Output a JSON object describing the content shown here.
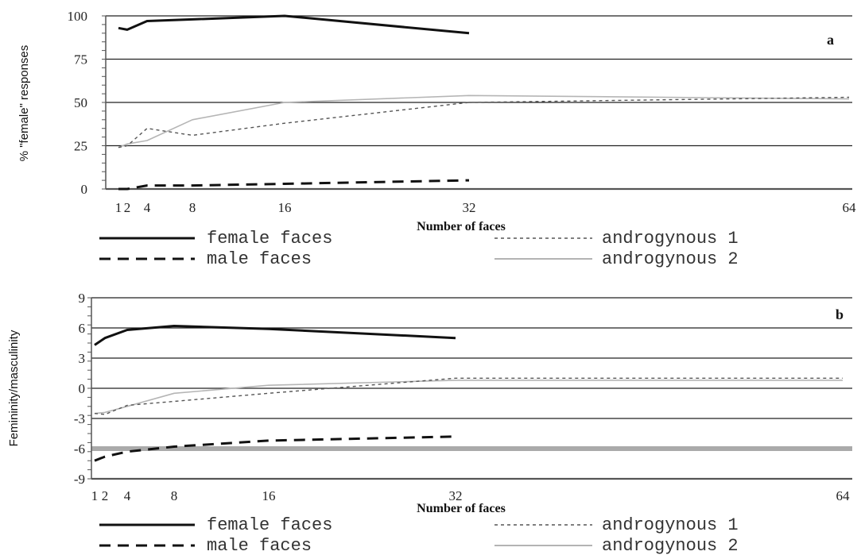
{
  "chart_data": [
    {
      "type": "line",
      "panel_label": "a",
      "xlabel": "Number of faces",
      "ylabel": "% \"female\" responses",
      "xlim": [
        1,
        64
      ],
      "ylim": [
        0,
        100
      ],
      "xticks": [
        1,
        2,
        4,
        8,
        16,
        32,
        64
      ],
      "xtick_labels": [
        "1",
        "2",
        "4",
        "8",
        "16",
        "32",
        "64"
      ],
      "yticks": [
        0,
        25,
        50,
        75,
        100
      ],
      "ytick_labels": [
        "0",
        "25",
        "50",
        "75",
        "100"
      ],
      "grid": "horizontal",
      "series": [
        {
          "name": "female faces",
          "style": "solid-bold",
          "x": [
            1,
            2,
            4,
            8,
            16,
            32
          ],
          "y": [
            93,
            92,
            97,
            98,
            100,
            90
          ]
        },
        {
          "name": "male faces",
          "style": "dashed-bold",
          "x": [
            1,
            2,
            4,
            8,
            16,
            32
          ],
          "y": [
            0,
            0,
            2,
            2,
            3,
            5
          ]
        },
        {
          "name": "androgynous 1",
          "style": "dotted-thin",
          "x": [
            1,
            2,
            4,
            8,
            16,
            32,
            64
          ],
          "y": [
            24,
            25,
            35,
            31,
            38,
            50,
            53
          ]
        },
        {
          "name": "androgynous 2",
          "style": "solid-light",
          "x": [
            1,
            2,
            4,
            8,
            16,
            32,
            64
          ],
          "y": [
            24,
            26,
            28,
            40,
            50,
            54,
            52
          ]
        }
      ]
    },
    {
      "type": "line",
      "panel_label": "b",
      "xlabel": "Number of faces",
      "ylabel": "Femininity/masculinity",
      "xlim": [
        1,
        64
      ],
      "ylim": [
        -9,
        9
      ],
      "xticks": [
        1,
        2,
        4,
        8,
        16,
        32,
        64
      ],
      "xtick_labels": [
        "1",
        "2",
        "4",
        "8",
        "16",
        "32",
        "64"
      ],
      "yticks": [
        -9,
        -6,
        -3,
        0,
        3,
        6,
        9
      ],
      "ytick_labels": [
        "-9",
        "-6",
        "-3",
        "0",
        "3",
        "6",
        "9"
      ],
      "grid": "horizontal",
      "series": [
        {
          "name": "female faces",
          "style": "solid-bold",
          "x": [
            1,
            2,
            4,
            8,
            16,
            32
          ],
          "y": [
            4.3,
            5.0,
            5.8,
            6.2,
            5.9,
            5.0
          ]
        },
        {
          "name": "male faces",
          "style": "dashed-bold",
          "x": [
            1,
            2,
            4,
            8,
            16,
            32
          ],
          "y": [
            -7.2,
            -6.8,
            -6.3,
            -5.8,
            -5.2,
            -4.8
          ]
        },
        {
          "name": "androgynous 1",
          "style": "dotted-thin",
          "x": [
            1,
            2,
            4,
            8,
            16,
            32,
            64
          ],
          "y": [
            -2.5,
            -2.6,
            -1.7,
            -1.3,
            -0.5,
            1.0,
            1.0
          ]
        },
        {
          "name": "androgynous 2",
          "style": "solid-light",
          "x": [
            1,
            2,
            4,
            8,
            16,
            32,
            64
          ],
          "y": [
            -2.5,
            -2.4,
            -1.8,
            -0.5,
            0.3,
            0.8,
            0.8
          ]
        }
      ]
    }
  ],
  "legend": [
    {
      "label": "female faces",
      "style": "solid-bold"
    },
    {
      "label": "androgynous 1",
      "style": "dotted-thin"
    },
    {
      "label": "male faces",
      "style": "dashed-bold"
    },
    {
      "label": "androgynous 2",
      "style": "solid-light"
    }
  ],
  "colors": {
    "axis": "#555555",
    "grid": "#222222",
    "grid_highlight": "#aaaaaa",
    "line_dark": "#111111",
    "line_light": "#b5b5b5",
    "line_dotted": "#555555"
  }
}
